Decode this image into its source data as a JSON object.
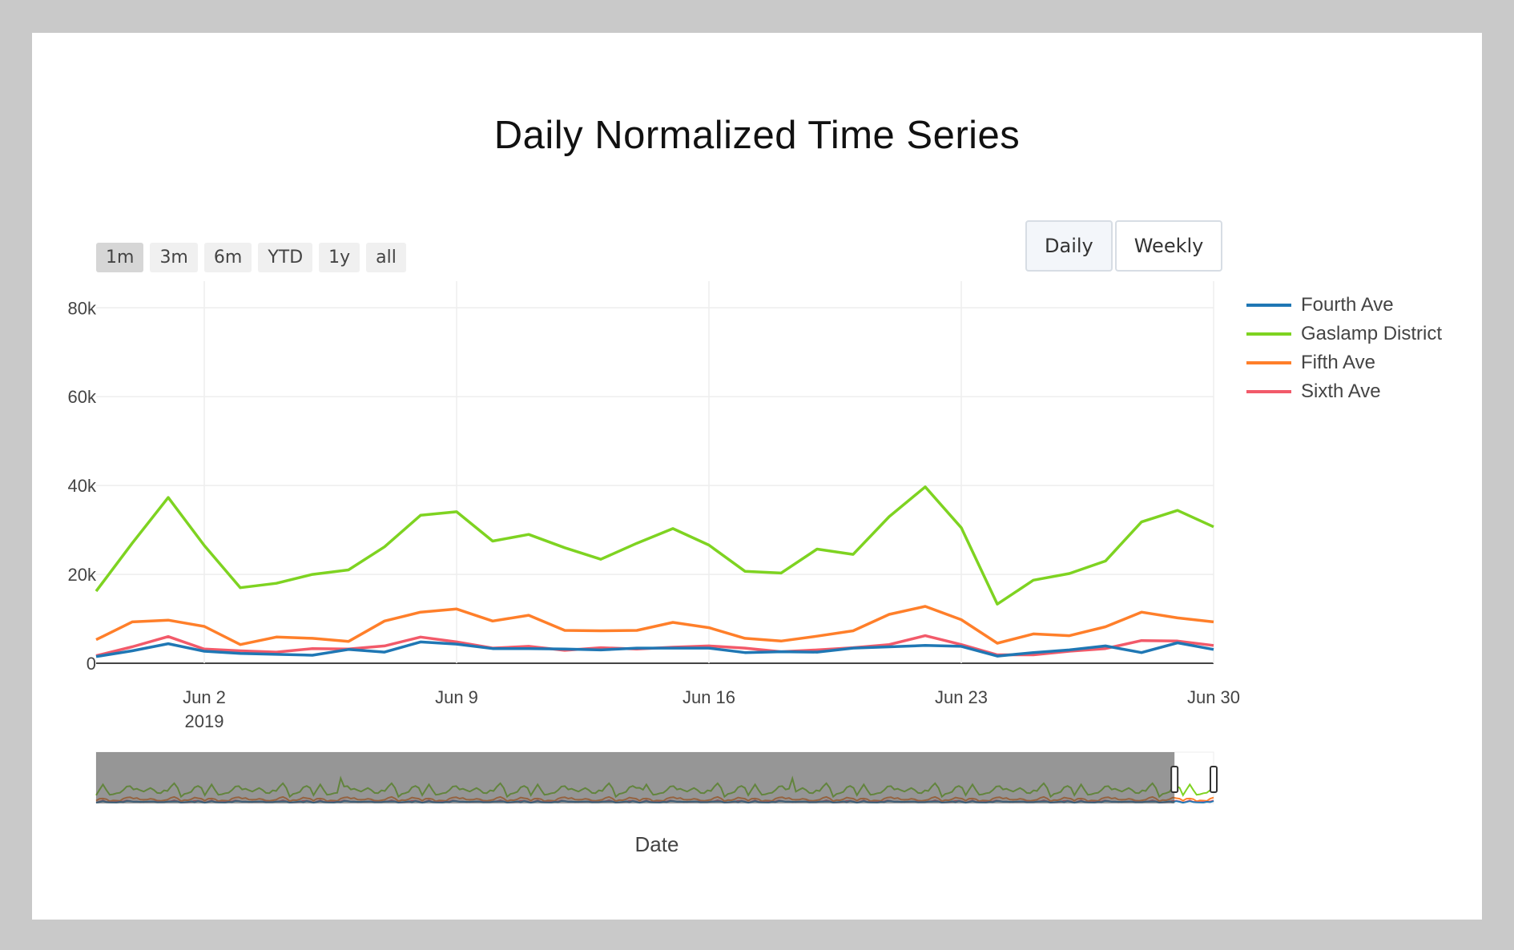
{
  "colors": {
    "fourth": "#1f77b4",
    "gaslamp": "#7ed321",
    "fifth": "#ff7f2a",
    "sixth": "#f25a6a",
    "grid": "#eeeeee",
    "axis_text": "#444444"
  },
  "range_selector": [
    "1m",
    "3m",
    "6m",
    "YTD",
    "1y",
    "all"
  ],
  "range_selected": "1m",
  "frequency_buttons": [
    "Daily",
    "Weekly"
  ],
  "frequency_selected": "Daily",
  "chart_data": {
    "type": "line",
    "title": "Daily Normalized Time Series",
    "xlabel": "Date",
    "ylabel": "",
    "ylim": [
      0,
      86000
    ],
    "xlim": [
      "2019-05-30",
      "2019-06-30"
    ],
    "grid": true,
    "legend_position": "right",
    "y_ticks": [
      0,
      20000,
      40000,
      60000,
      80000
    ],
    "y_tick_labels": [
      "0",
      "20k",
      "40k",
      "60k",
      "80k"
    ],
    "x_ticks": [
      "2019-06-02",
      "2019-06-09",
      "2019-06-16",
      "2019-06-23",
      "2019-06-30"
    ],
    "x_tick_labels": [
      "Jun 2",
      "Jun 9",
      "Jun 16",
      "Jun 23",
      "Jun 30"
    ],
    "x_tick_sublabel": "2019",
    "x": [
      "2019-05-30",
      "2019-05-31",
      "2019-06-01",
      "2019-06-02",
      "2019-06-03",
      "2019-06-04",
      "2019-06-05",
      "2019-06-06",
      "2019-06-07",
      "2019-06-08",
      "2019-06-09",
      "2019-06-10",
      "2019-06-11",
      "2019-06-12",
      "2019-06-13",
      "2019-06-14",
      "2019-06-15",
      "2019-06-16",
      "2019-06-17",
      "2019-06-18",
      "2019-06-19",
      "2019-06-20",
      "2019-06-21",
      "2019-06-22",
      "2019-06-23",
      "2019-06-24",
      "2019-06-25",
      "2019-06-26",
      "2019-06-27",
      "2019-06-28",
      "2019-06-29",
      "2019-06-30"
    ],
    "series": [
      {
        "name": "Fourth Ave",
        "color_key": "fourth",
        "values": [
          1500,
          2800,
          4400,
          2700,
          2200,
          2000,
          1800,
          3100,
          2500,
          4800,
          4300,
          3300,
          3300,
          3200,
          3000,
          3400,
          3400,
          3400,
          2400,
          2600,
          2500,
          3400,
          3700,
          4000,
          3800,
          1600,
          2400,
          3000,
          3900,
          2400,
          4600,
          3100
        ]
      },
      {
        "name": "Gaslamp District",
        "color_key": "gaslamp",
        "values": [
          16200,
          27000,
          37300,
          26500,
          17000,
          18000,
          20000,
          21000,
          26200,
          33300,
          34100,
          27500,
          29000,
          26000,
          23400,
          27000,
          30300,
          26600,
          20700,
          20300,
          25700,
          24500,
          33000,
          39700,
          30500,
          13300,
          18700,
          20200,
          23000,
          31800,
          34400,
          30700
        ]
      },
      {
        "name": "Fifth Ave",
        "color_key": "fifth",
        "values": [
          5300,
          9300,
          9700,
          8300,
          4200,
          5900,
          5600,
          4900,
          9500,
          11500,
          12200,
          9500,
          10800,
          7400,
          7300,
          7400,
          9200,
          8000,
          5600,
          5000,
          6100,
          7300,
          11000,
          12800,
          9800,
          4500,
          6600,
          6200,
          8200,
          11500,
          10200,
          9300
        ]
      },
      {
        "name": "Sixth Ave",
        "color_key": "sixth",
        "values": [
          1700,
          3700,
          6000,
          3200,
          2800,
          2500,
          3300,
          3200,
          3900,
          5900,
          4800,
          3400,
          3800,
          2900,
          3500,
          3200,
          3600,
          3900,
          3400,
          2600,
          3000,
          3500,
          4200,
          6200,
          4200,
          1900,
          1900,
          2700,
          3300,
          5100,
          5000,
          4000
        ]
      }
    ]
  },
  "range_slider": {
    "window_start_fraction": 0.965,
    "window_end_fraction": 1.0
  }
}
